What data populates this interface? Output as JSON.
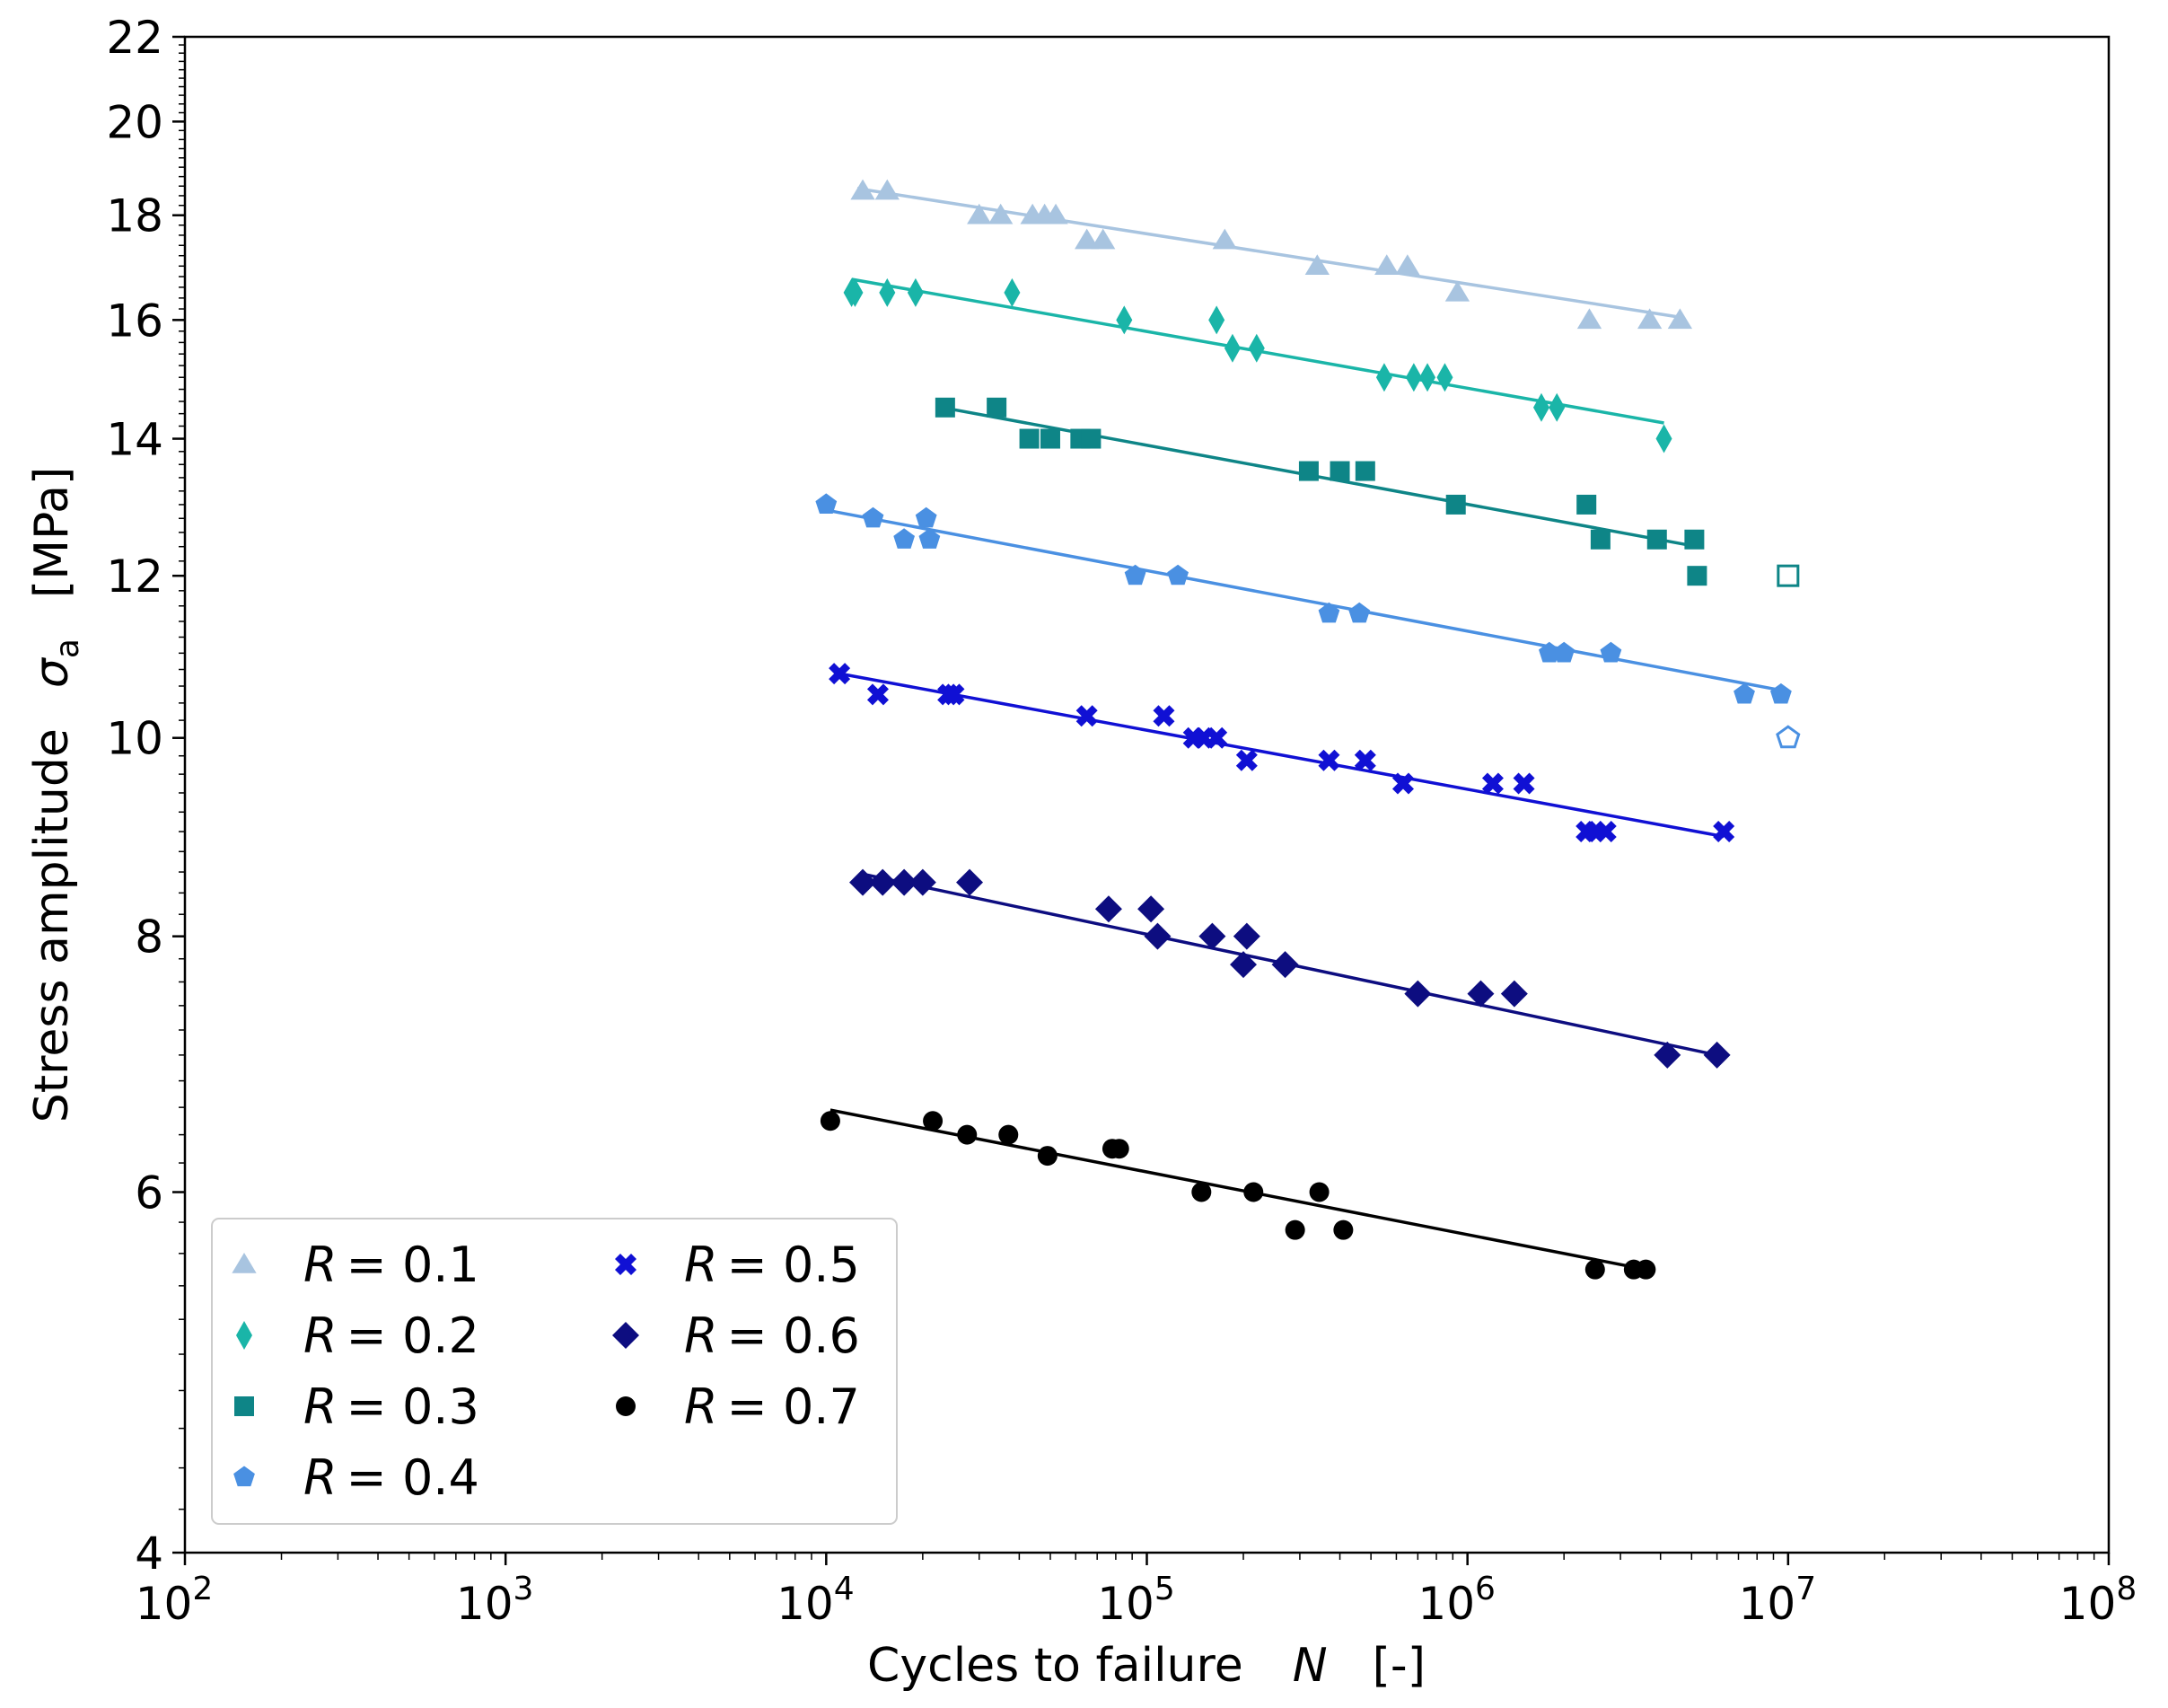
{
  "chart_data": {
    "type": "scatter",
    "title": "",
    "xlabel": {
      "text": "Cycles to failure",
      "symbol": "N",
      "unit": "[-]"
    },
    "ylabel": {
      "text": "Stress amplitude",
      "symbol": "σ",
      "subscript": "a",
      "unit": "[MPa]"
    },
    "xscale": "log",
    "yscale": "log",
    "xlim": [
      100,
      100000000
    ],
    "ylim": [
      4,
      22
    ],
    "x_ticks": [
      {
        "value": 100,
        "base": "10",
        "exp": "2"
      },
      {
        "value": 1000,
        "base": "10",
        "exp": "3"
      },
      {
        "value": 10000,
        "base": "10",
        "exp": "4"
      },
      {
        "value": 100000,
        "base": "10",
        "exp": "5"
      },
      {
        "value": 1000000,
        "base": "10",
        "exp": "6"
      },
      {
        "value": 10000000,
        "base": "10",
        "exp": "7"
      },
      {
        "value": 100000000,
        "base": "10",
        "exp": "8"
      }
    ],
    "y_ticks": [
      {
        "value": 4,
        "label": "4"
      },
      {
        "value": 6,
        "label": "6"
      },
      {
        "value": 8,
        "label": "8"
      },
      {
        "value": 10,
        "label": "10"
      },
      {
        "value": 12,
        "label": "12"
      },
      {
        "value": 14,
        "label": "14"
      },
      {
        "value": 16,
        "label": "16"
      },
      {
        "value": 18,
        "label": "18"
      },
      {
        "value": 20,
        "label": "20"
      },
      {
        "value": 22,
        "label": "22"
      }
    ],
    "legend": {
      "position": "lower-left",
      "columns": 2
    },
    "series": [
      {
        "name": "R = 0.1",
        "R_symbol": "R",
        "R_value": "= 0.1",
        "color": "#a8c4e0",
        "marker": "triangle",
        "points": [
          [
            13000,
            18.5
          ],
          [
            15500,
            18.5
          ],
          [
            30000,
            18
          ],
          [
            35000,
            18
          ],
          [
            44000,
            18
          ],
          [
            48000,
            18
          ],
          [
            52000,
            18
          ],
          [
            65000,
            17.5
          ],
          [
            73000,
            17.5
          ],
          [
            175000,
            17.5
          ],
          [
            340000,
            17
          ],
          [
            560000,
            17
          ],
          [
            650000,
            17
          ],
          [
            930000,
            16.5
          ],
          [
            2400000,
            16
          ],
          [
            3700000,
            16
          ],
          [
            4600000,
            16
          ]
        ],
        "fit": [
          [
            12500,
            18.55
          ],
          [
            4600000,
            16.05
          ]
        ],
        "runouts": []
      },
      {
        "name": "R = 0.2",
        "R_symbol": "R",
        "R_value": "= 0.2",
        "color": "#1ab5a8",
        "marker": "thin-diamond",
        "points": [
          [
            12000,
            16.5
          ],
          [
            12300,
            16.5
          ],
          [
            15500,
            16.5
          ],
          [
            19000,
            16.5
          ],
          [
            38000,
            16.5
          ],
          [
            85000,
            16
          ],
          [
            165000,
            16
          ],
          [
            185000,
            15.5
          ],
          [
            220000,
            15.5
          ],
          [
            550000,
            15
          ],
          [
            680000,
            15
          ],
          [
            750000,
            15
          ],
          [
            850000,
            15
          ],
          [
            1700000,
            14.5
          ],
          [
            1900000,
            14.5
          ],
          [
            4100000,
            14
          ]
        ],
        "fit": [
          [
            12000,
            16.75
          ],
          [
            4100000,
            14.25
          ]
        ],
        "runouts": []
      },
      {
        "name": "R = 0.3",
        "R_symbol": "R",
        "R_value": "= 0.3",
        "color": "#0e8587",
        "marker": "square",
        "points": [
          [
            23500,
            14.5
          ],
          [
            34000,
            14.5
          ],
          [
            43000,
            14
          ],
          [
            50000,
            14
          ],
          [
            62000,
            14
          ],
          [
            67000,
            14
          ],
          [
            320000,
            13.5
          ],
          [
            400000,
            13.5
          ],
          [
            480000,
            13.5
          ],
          [
            920000,
            13
          ],
          [
            2350000,
            13
          ],
          [
            2600000,
            12.5
          ],
          [
            3900000,
            12.5
          ],
          [
            5100000,
            12.5
          ],
          [
            5200000,
            12
          ]
        ],
        "fit": [
          [
            23000,
            14.5
          ],
          [
            5200000,
            12.4
          ]
        ],
        "runouts": [
          [
            10000000,
            12
          ]
        ]
      },
      {
        "name": "R = 0.4",
        "R_symbol": "R",
        "R_value": "= 0.4",
        "color": "#4a90e2",
        "marker": "pentagon",
        "points": [
          [
            10000,
            13
          ],
          [
            14000,
            12.8
          ],
          [
            17500,
            12.5
          ],
          [
            20500,
            12.8
          ],
          [
            21000,
            12.5
          ],
          [
            92000,
            12
          ],
          [
            125000,
            12
          ],
          [
            370000,
            11.5
          ],
          [
            460000,
            11.5
          ],
          [
            1800000,
            11
          ],
          [
            2000000,
            11
          ],
          [
            2800000,
            11
          ],
          [
            7300000,
            10.5
          ],
          [
            9500000,
            10.5
          ]
        ],
        "fit": [
          [
            10000,
            12.92
          ],
          [
            9500000,
            10.55
          ]
        ],
        "runouts": [
          [
            10000000,
            10
          ]
        ]
      },
      {
        "name": "R = 0.5",
        "R_symbol": "R",
        "R_value": "= 0.5",
        "color": "#1010d4",
        "marker": "x",
        "points": [
          [
            11000,
            10.75
          ],
          [
            14500,
            10.5
          ],
          [
            24000,
            10.5
          ],
          [
            25000,
            10.5
          ],
          [
            65000,
            10.25
          ],
          [
            113000,
            10.25
          ],
          [
            140000,
            10
          ],
          [
            150000,
            10
          ],
          [
            165000,
            10
          ],
          [
            205000,
            9.75
          ],
          [
            370000,
            9.75
          ],
          [
            480000,
            9.75
          ],
          [
            630000,
            9.5
          ],
          [
            1200000,
            9.5
          ],
          [
            1500000,
            9.5
          ],
          [
            2350000,
            9
          ],
          [
            2500000,
            9
          ],
          [
            2700000,
            9
          ],
          [
            6300000,
            9
          ]
        ],
        "fit": [
          [
            11000,
            10.75
          ],
          [
            6300000,
            8.95
          ]
        ],
        "runouts": []
      },
      {
        "name": "R = 0.6",
        "R_symbol": "R",
        "R_value": "= 0.6",
        "color": "#0d0d80",
        "marker": "diamond",
        "points": [
          [
            13000,
            8.5
          ],
          [
            15000,
            8.5
          ],
          [
            17500,
            8.5
          ],
          [
            20000,
            8.5
          ],
          [
            28000,
            8.5
          ],
          [
            76000,
            8.25
          ],
          [
            103000,
            8.25
          ],
          [
            108000,
            8
          ],
          [
            160000,
            8
          ],
          [
            205000,
            8
          ],
          [
            200000,
            7.75
          ],
          [
            270000,
            7.75
          ],
          [
            700000,
            7.5
          ],
          [
            1100000,
            7.5
          ],
          [
            1400000,
            7.5
          ],
          [
            4200000,
            7
          ],
          [
            6000000,
            7
          ]
        ],
        "fit": [
          [
            13000,
            8.58
          ],
          [
            6000000,
            7.0
          ]
        ],
        "runouts": []
      },
      {
        "name": "R = 0.7",
        "R_symbol": "R",
        "R_value": "= 0.7",
        "color": "#000000",
        "marker": "circle",
        "points": [
          [
            10300,
            6.5
          ],
          [
            21500,
            6.5
          ],
          [
            27500,
            6.4
          ],
          [
            37000,
            6.4
          ],
          [
            49000,
            6.25
          ],
          [
            78000,
            6.3
          ],
          [
            82000,
            6.3
          ],
          [
            148000,
            6
          ],
          [
            215000,
            6
          ],
          [
            290000,
            5.75
          ],
          [
            345000,
            6
          ],
          [
            410000,
            5.75
          ],
          [
            2500000,
            5.5
          ],
          [
            3300000,
            5.5
          ],
          [
            3600000,
            5.5
          ]
        ],
        "fit": [
          [
            10300,
            6.58
          ],
          [
            3600000,
            5.5
          ]
        ],
        "runouts": []
      }
    ]
  }
}
